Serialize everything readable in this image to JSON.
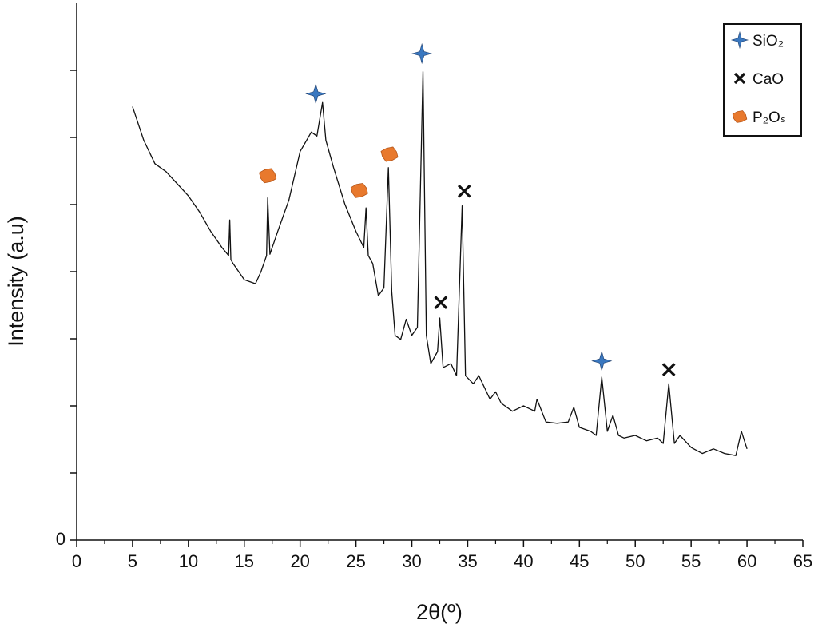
{
  "chart_data": {
    "type": "line",
    "xlabel": "2θ(º)",
    "ylabel": "Intensity (a.u)",
    "color": "#111111",
    "xlim": [
      0,
      65
    ],
    "xticks": [
      0,
      5,
      10,
      15,
      20,
      25,
      30,
      35,
      40,
      45,
      50,
      55,
      60,
      65
    ],
    "xminor_ticks": [
      2.5,
      7.5,
      12.5,
      17.5,
      22.5,
      27.5,
      32.5,
      37.5,
      42.5,
      47.5,
      52.5,
      57.5,
      62.5
    ],
    "ylim": [
      0,
      8
    ],
    "yticks": [
      0
    ],
    "yminor_ticks": [
      1,
      2,
      3,
      4,
      5,
      6,
      7
    ],
    "x": [
      5,
      6,
      7,
      8,
      9,
      10,
      11,
      12,
      13,
      13.6,
      13.7,
      13.8,
      14,
      15,
      16,
      16.5,
      17,
      17.1,
      17.3,
      18,
      19,
      20,
      21,
      21.5,
      22,
      22.3,
      23,
      24,
      25,
      25.7,
      25.9,
      26.1,
      26.5,
      27,
      27.5,
      27.9,
      28.2,
      28.5,
      29,
      29.5,
      30,
      30.5,
      31,
      31.3,
      31.7,
      32.3,
      32.5,
      32.8,
      33.5,
      34,
      34.5,
      34.8,
      35.5,
      36,
      37,
      37.5,
      38,
      39,
      40,
      41,
      41.2,
      42,
      43,
      44,
      44.5,
      45,
      46,
      46.5,
      47,
      47.5,
      48,
      48.5,
      49,
      50,
      51,
      52,
      52.5,
      53,
      53.5,
      54,
      55,
      56,
      57,
      58,
      59,
      59.5,
      60
    ],
    "values": [
      6.46,
      5.96,
      5.61,
      5.49,
      5.31,
      5.13,
      4.89,
      4.6,
      4.36,
      4.24,
      4.77,
      4.18,
      4.12,
      3.88,
      3.82,
      4.0,
      4.24,
      5.1,
      4.26,
      4.6,
      5.07,
      5.79,
      6.08,
      6.02,
      6.52,
      5.96,
      5.55,
      5.01,
      4.6,
      4.36,
      4.95,
      4.24,
      4.12,
      3.64,
      3.76,
      5.55,
      3.7,
      3.05,
      2.99,
      3.29,
      3.05,
      3.17,
      6.98,
      3.05,
      2.63,
      2.81,
      3.31,
      2.57,
      2.63,
      2.45,
      4.98,
      2.45,
      2.33,
      2.45,
      2.1,
      2.21,
      2.04,
      1.92,
      2.0,
      1.92,
      2.1,
      1.76,
      1.74,
      1.76,
      1.98,
      1.68,
      1.62,
      1.56,
      2.43,
      1.62,
      1.86,
      1.56,
      1.52,
      1.56,
      1.48,
      1.52,
      1.44,
      2.33,
      1.44,
      1.56,
      1.38,
      1.29,
      1.36,
      1.29,
      1.26,
      1.62,
      1.36
    ],
    "legend": "upper right",
    "markers": [
      {
        "name": "SiO₂",
        "color": "#3a78c0",
        "symbol": "star4",
        "x": [
          21.4,
          30.9,
          47
        ],
        "values": [
          6.65,
          7.25,
          2.67
        ]
      },
      {
        "name": "CaO",
        "color": "#111111",
        "symbol": "cross",
        "x": [
          32.6,
          34.7,
          53
        ],
        "values": [
          3.54,
          5.2,
          2.54
        ]
      },
      {
        "name": "P₂Oₛ",
        "color": "#e8792d",
        "symbol": "octagon",
        "x": [
          17.1,
          25.3,
          28
        ],
        "values": [
          5.43,
          5.21,
          5.75
        ]
      }
    ]
  }
}
